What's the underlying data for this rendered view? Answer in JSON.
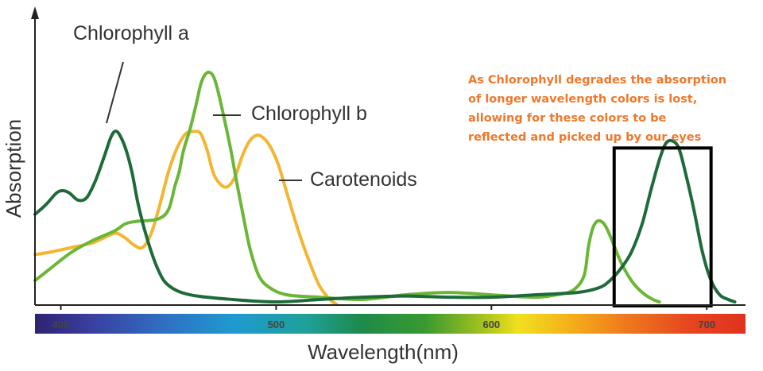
{
  "chart_data": {
    "type": "line",
    "xlabel": "Wavelength(nm)",
    "ylabel": "Absorption",
    "xlim": [
      388,
      718
    ],
    "ylim": [
      0,
      1
    ],
    "x_ticks": [
      "400",
      "500",
      "600",
      "700"
    ],
    "grid": false,
    "colors": {
      "chlorophyll_a": "#1e6b3a",
      "chlorophyll_b": "#6cb636",
      "carotenoids": "#f2b632",
      "box": "#000000",
      "annotation": "#f0782a"
    },
    "series": [
      {
        "name": "Chlorophyll a",
        "points": [
          [
            388,
            0.38
          ],
          [
            393,
            0.42
          ],
          [
            398,
            0.47
          ],
          [
            401,
            0.48
          ],
          [
            404,
            0.47
          ],
          [
            408,
            0.44
          ],
          [
            412,
            0.45
          ],
          [
            416,
            0.52
          ],
          [
            420,
            0.62
          ],
          [
            423,
            0.7
          ],
          [
            425,
            0.73
          ],
          [
            427,
            0.72
          ],
          [
            430,
            0.66
          ],
          [
            433,
            0.56
          ],
          [
            436,
            0.42
          ],
          [
            440,
            0.28
          ],
          [
            445,
            0.15
          ],
          [
            450,
            0.08
          ],
          [
            460,
            0.04
          ],
          [
            480,
            0.02
          ],
          [
            500,
            0.01
          ],
          [
            520,
            0.02
          ],
          [
            540,
            0.03
          ],
          [
            560,
            0.035
          ],
          [
            580,
            0.03
          ],
          [
            600,
            0.03
          ],
          [
            620,
            0.04
          ],
          [
            640,
            0.05
          ],
          [
            650,
            0.07
          ],
          [
            655,
            0.1
          ],
          [
            660,
            0.15
          ],
          [
            665,
            0.22
          ],
          [
            670,
            0.34
          ],
          [
            674,
            0.48
          ],
          [
            678,
            0.61
          ],
          [
            681,
            0.68
          ],
          [
            684,
            0.69
          ],
          [
            687,
            0.66
          ],
          [
            690,
            0.56
          ],
          [
            694,
            0.4
          ],
          [
            698,
            0.22
          ],
          [
            702,
            0.1
          ],
          [
            706,
            0.04
          ],
          [
            710,
            0.02
          ],
          [
            713,
            0.01
          ]
        ]
      },
      {
        "name": "Chlorophyll b",
        "points": [
          [
            388,
            0.1
          ],
          [
            395,
            0.15
          ],
          [
            405,
            0.22
          ],
          [
            415,
            0.27
          ],
          [
            425,
            0.31
          ],
          [
            430,
            0.34
          ],
          [
            435,
            0.35
          ],
          [
            445,
            0.36
          ],
          [
            450,
            0.4
          ],
          [
            453,
            0.5
          ],
          [
            455,
            0.56
          ],
          [
            457,
            0.65
          ],
          [
            460,
            0.74
          ],
          [
            463,
            0.85
          ],
          [
            465,
            0.93
          ],
          [
            467,
            0.97
          ],
          [
            469,
            0.98
          ],
          [
            471,
            0.96
          ],
          [
            473,
            0.9
          ],
          [
            476,
            0.78
          ],
          [
            479,
            0.65
          ],
          [
            482,
            0.5
          ],
          [
            485,
            0.36
          ],
          [
            488,
            0.23
          ],
          [
            492,
            0.12
          ],
          [
            497,
            0.07
          ],
          [
            505,
            0.04
          ],
          [
            520,
            0.03
          ],
          [
            540,
            0.02
          ],
          [
            560,
            0.04
          ],
          [
            580,
            0.05
          ],
          [
            600,
            0.04
          ],
          [
            620,
            0.03
          ],
          [
            630,
            0.04
          ],
          [
            638,
            0.06
          ],
          [
            643,
            0.12
          ],
          [
            645,
            0.24
          ],
          [
            647,
            0.32
          ],
          [
            649,
            0.35
          ],
          [
            651,
            0.35
          ],
          [
            653,
            0.33
          ],
          [
            656,
            0.27
          ],
          [
            660,
            0.18
          ],
          [
            665,
            0.1
          ],
          [
            670,
            0.05
          ],
          [
            675,
            0.02
          ],
          [
            678,
            0.01
          ]
        ]
      },
      {
        "name": "Carotenoids",
        "points": [
          [
            388,
            0.21
          ],
          [
            395,
            0.22
          ],
          [
            405,
            0.24
          ],
          [
            415,
            0.26
          ],
          [
            422,
            0.29
          ],
          [
            426,
            0.3
          ],
          [
            430,
            0.28
          ],
          [
            434,
            0.25
          ],
          [
            438,
            0.24
          ],
          [
            442,
            0.3
          ],
          [
            446,
            0.42
          ],
          [
            450,
            0.56
          ],
          [
            454,
            0.66
          ],
          [
            458,
            0.72
          ],
          [
            462,
            0.73
          ],
          [
            465,
            0.72
          ],
          [
            468,
            0.65
          ],
          [
            471,
            0.55
          ],
          [
            475,
            0.5
          ],
          [
            478,
            0.5
          ],
          [
            481,
            0.54
          ],
          [
            484,
            0.62
          ],
          [
            487,
            0.68
          ],
          [
            490,
            0.71
          ],
          [
            493,
            0.71
          ],
          [
            497,
            0.67
          ],
          [
            501,
            0.59
          ],
          [
            505,
            0.47
          ],
          [
            510,
            0.32
          ],
          [
            515,
            0.19
          ],
          [
            520,
            0.08
          ],
          [
            525,
            0.02
          ],
          [
            528,
            0.0
          ]
        ]
      }
    ],
    "series_labels": [
      "Chlorophyll a",
      "Chlorophyll b",
      "Carotenoids"
    ],
    "highlight_box": {
      "x": [
        657,
        702
      ],
      "y": [
        0,
        0.66
      ]
    },
    "annotation_lines": [
      "As Chlorophyll degrades the absorption",
      "of longer wavelength colors is lost,",
      "allowing for these colors to be",
      "reflected and picked up by our eyes"
    ]
  }
}
